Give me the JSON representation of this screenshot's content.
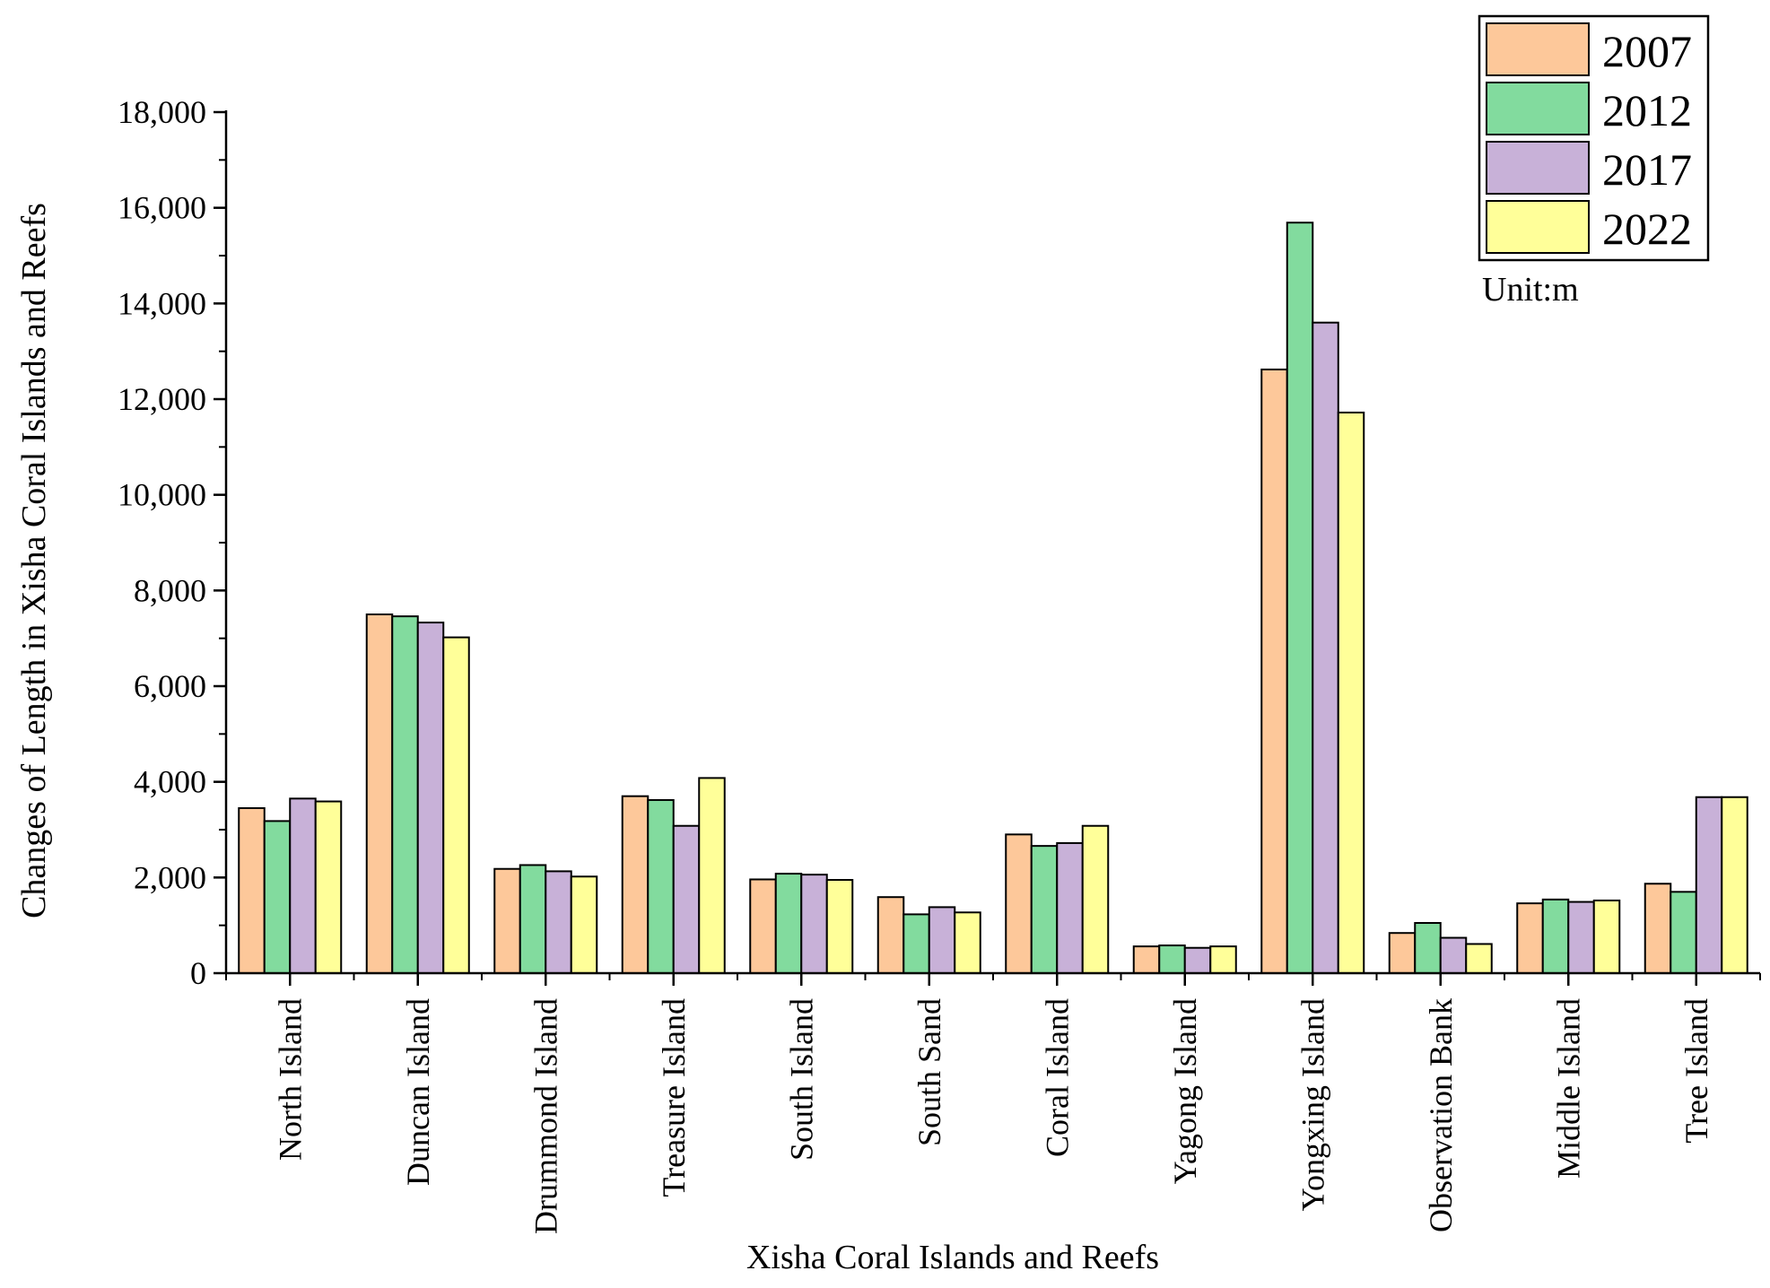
{
  "chart_data": {
    "type": "bar",
    "title": "",
    "xlabel": "Xisha Coral Islands and Reefs",
    "ylabel": "Changes of Length in Xisha Coral Islands and Reefs",
    "unit_label": "Unit:m",
    "ylim": [
      0,
      18000
    ],
    "yticks": [
      0,
      2000,
      4000,
      6000,
      8000,
      10000,
      12000,
      14000,
      16000,
      18000
    ],
    "ytick_labels": [
      "0",
      "2,000",
      "4,000",
      "6,000",
      "8,000",
      "10,000",
      "12,000",
      "14,000",
      "16,000",
      "18,000"
    ],
    "grid": false,
    "legend_position": "top-right",
    "categories": [
      "North Island",
      "Duncan Island",
      "Drummond Island",
      "Treasure Island",
      "South Island",
      "South Sand",
      "Coral Island",
      "Yagong Island",
      "Yongxing Island",
      "Observation Bank",
      "Middle Island",
      "Tree Island"
    ],
    "series": [
      {
        "name": "2007",
        "color": "#FDC89A",
        "values": [
          3450,
          7500,
          2180,
          3700,
          1960,
          1590,
          2900,
          560,
          12620,
          840,
          1460,
          1870
        ]
      },
      {
        "name": "2012",
        "color": "#82DB9E",
        "values": [
          3180,
          7460,
          2260,
          3620,
          2080,
          1230,
          2660,
          580,
          15690,
          1050,
          1540,
          1700
        ]
      },
      {
        "name": "2017",
        "color": "#C8B1D8",
        "values": [
          3650,
          7330,
          2130,
          3080,
          2060,
          1380,
          2720,
          530,
          13600,
          740,
          1490,
          3680
        ]
      },
      {
        "name": "2022",
        "color": "#FFFF99",
        "values": [
          3590,
          7020,
          2020,
          4080,
          1950,
          1270,
          3080,
          560,
          11720,
          610,
          1520,
          3680
        ]
      }
    ]
  }
}
